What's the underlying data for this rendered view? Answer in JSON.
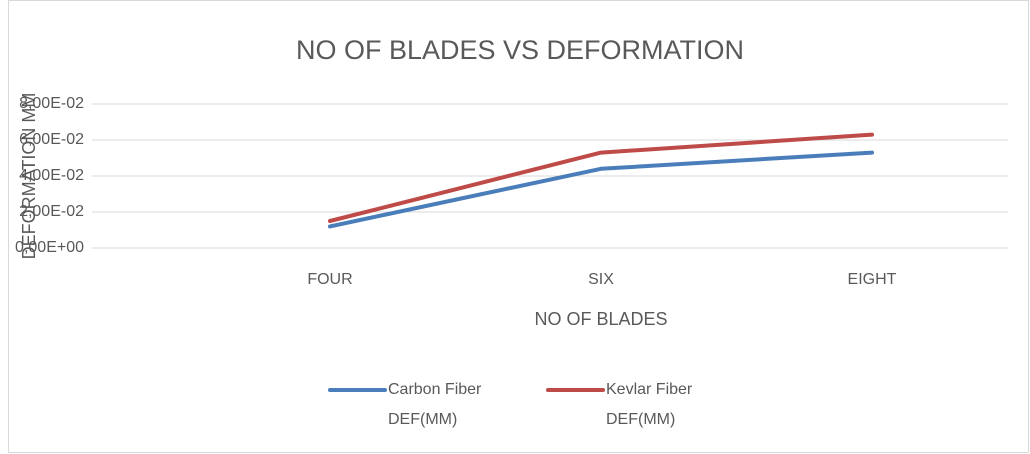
{
  "chart_data": {
    "type": "line",
    "title": "NO OF BLADES VS DEFORMATION",
    "xlabel": "NO OF BLADES",
    "ylabel": "DEFORMATION MM",
    "categories": [
      "FOUR",
      "SIX",
      "EIGHT"
    ],
    "series": [
      {
        "name": "Carbon Fiber DEF(MM)",
        "color": "#4a7ebb",
        "values": [
          0.012,
          0.044,
          0.053
        ]
      },
      {
        "name": "Kevlar Fiber DEF(MM)",
        "color": "#be4b48",
        "values": [
          0.015,
          0.053,
          0.063
        ]
      }
    ],
    "ylim": [
      0,
      0.08
    ],
    "yticks": [
      {
        "value": 0,
        "label": "0,00E+00"
      },
      {
        "value": 0.02,
        "label": "2,00E-02"
      },
      {
        "value": 0.04,
        "label": "4,00E-02"
      },
      {
        "value": 0.06,
        "label": "6,00E-02"
      },
      {
        "value": 0.08,
        "label": "8,00E-02"
      }
    ],
    "grid": true,
    "legend": "bottom"
  }
}
